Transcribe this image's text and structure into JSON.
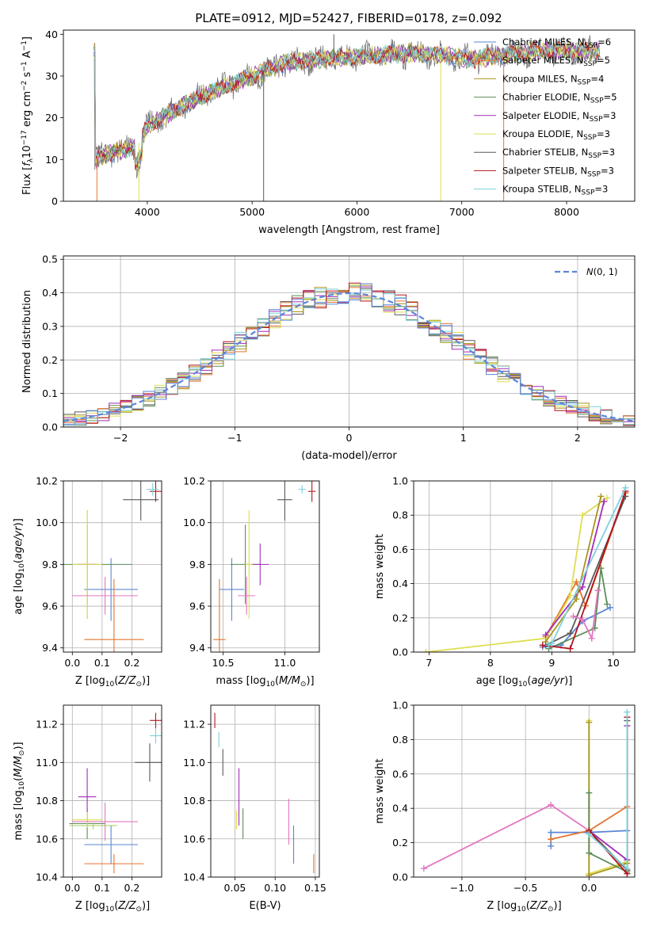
{
  "title": "PLATE=0912, MJD=52427, FIBERID=0178, z=0.092",
  "colors": [
    "#5b86d6",
    "#e6752e",
    "#a8951f",
    "#5e8c5a",
    "#a22db8",
    "#dede52",
    "#595959",
    "#b3151e",
    "#7fd0db",
    "#e377c2",
    "#a9d36a"
  ],
  "legend_labels": [
    "Chabrier MILES, N_SSP=6",
    "Salpeter MILES, N_SSP=5",
    "Kroupa MILES, N_SSP=4",
    "Chabrier ELODIE, N_SSP=5",
    "Salpeter ELODIE, N_SSP=3",
    "Kroupa ELODIE, N_SSP=3",
    "Chabrier STELIB, N_SSP=3",
    "Salpeter STELIB, N_SSP=3",
    "Kroupa STELIB, N_SSP=3"
  ],
  "chart_data": [
    {
      "id": "spectrum",
      "type": "line",
      "xlabel": "wavelength [Angstrom, rest frame]",
      "ylabel": "Flux [f_λ 10^-17 erg cm^-2 s^-1 A^-1]",
      "xlim": [
        3200,
        8650
      ],
      "ylim": [
        0,
        41
      ],
      "xticks": [
        4000,
        5000,
        6000,
        7000,
        8000
      ],
      "yticks": [
        0,
        10,
        20,
        30,
        40
      ],
      "grid": false,
      "legend": "top-right",
      "continuum": [
        [
          3500,
          10
        ],
        [
          3700,
          12
        ],
        [
          3900,
          13
        ],
        [
          4000,
          18
        ],
        [
          4200,
          21
        ],
        [
          4500,
          25
        ],
        [
          4800,
          28
        ],
        [
          5000,
          30
        ],
        [
          5300,
          33
        ],
        [
          5600,
          34
        ],
        [
          5900,
          34.5
        ],
        [
          6200,
          35
        ],
        [
          6500,
          35.5
        ],
        [
          6800,
          35
        ],
        [
          7100,
          34
        ],
        [
          7400,
          35
        ],
        [
          7700,
          36
        ],
        [
          8000,
          36
        ],
        [
          8300,
          36
        ]
      ],
      "spikes": [
        [
          5110,
          0
        ],
        [
          5780,
          40
        ],
        [
          6800,
          0
        ],
        [
          7400,
          0
        ],
        [
          3920,
          0
        ],
        [
          3520,
          0
        ]
      ]
    },
    {
      "id": "residual-histogram",
      "type": "bar",
      "xlabel": "(data-model)/error",
      "ylabel": "Normed distribution",
      "xlim": [
        -2.5,
        2.5
      ],
      "ylim": [
        0,
        0.51
      ],
      "xticks": [
        -2,
        -1,
        0,
        1,
        2
      ],
      "yticks": [
        0.0,
        0.1,
        0.2,
        0.3,
        0.4,
        0.5
      ],
      "grid": true,
      "legend": "top-right",
      "reference": {
        "name": "N(0,1)",
        "mean": 0,
        "sigma": 1
      },
      "bin_width": 0.1,
      "n_series": 9
    },
    {
      "id": "age-vs-metallicity",
      "type": "scatter",
      "xlabel": "Z [log10(Z/Z☉)]",
      "ylabel": "age [log10(age/yr)]",
      "xlim": [
        -0.03,
        0.3
      ],
      "ylim": [
        9.38,
        10.2
      ],
      "xticks": [
        0.0,
        0.1,
        0.2
      ],
      "yticks": [
        9.4,
        9.6,
        9.8,
        10.0,
        10.2
      ],
      "grid": true,
      "points": [
        {
          "series": 0,
          "x": 0.13,
          "y": 9.68,
          "xerr": 0.09,
          "yerr": 0.15
        },
        {
          "series": 1,
          "x": 0.14,
          "y": 9.44,
          "xerr": 0.1,
          "yerr": 0.29
        },
        {
          "series": 3,
          "x": 0.05,
          "y": 9.8,
          "xerr": 0.15,
          "yerr": 0.19
        },
        {
          "series": 4,
          "x": 0.05,
          "y": 9.8,
          "xerr": 0.03,
          "yerr": 0.26
        },
        {
          "series": 5,
          "x": 0.05,
          "y": 9.8,
          "xerr": 0.05,
          "yerr": 0.26
        },
        {
          "series": 6,
          "x": 0.23,
          "y": 10.11,
          "xerr": 0.06,
          "yerr": 0.1
        },
        {
          "series": 7,
          "x": 0.28,
          "y": 10.15,
          "xerr": 0.02,
          "yerr": 0.05
        },
        {
          "series": 8,
          "x": 0.27,
          "y": 10.16,
          "xerr": 0.02,
          "yerr": 0.03
        },
        {
          "series": 9,
          "x": 0.11,
          "y": 9.65,
          "xerr": 0.11,
          "yerr": 0.09
        }
      ]
    },
    {
      "id": "age-vs-mass",
      "type": "scatter",
      "xlabel": "mass [log10(M/M☉)]",
      "ylabel": "",
      "xlim": [
        10.4,
        11.28
      ],
      "ylim": [
        9.38,
        10.2
      ],
      "xticks": [
        10.5,
        11.0
      ],
      "yticks": [
        9.4,
        9.6,
        9.8,
        10.0,
        10.2
      ],
      "grid": true,
      "points": [
        {
          "series": 0,
          "x": 10.57,
          "y": 9.68,
          "xerr": 0.1,
          "yerr": 0.15
        },
        {
          "series": 1,
          "x": 10.47,
          "y": 9.44,
          "xerr": 0.05,
          "yerr": 0.29
        },
        {
          "series": 3,
          "x": 10.68,
          "y": 9.8,
          "xerr": 0.12,
          "yerr": 0.19
        },
        {
          "series": 4,
          "x": 10.8,
          "y": 9.8,
          "xerr": 0.07,
          "yerr": 0.1
        },
        {
          "series": 5,
          "x": 10.71,
          "y": 9.8,
          "xerr": 0.03,
          "yerr": 0.26
        },
        {
          "series": 6,
          "x": 11.0,
          "y": 10.11,
          "xerr": 0.06,
          "yerr": 0.1
        },
        {
          "series": 7,
          "x": 11.22,
          "y": 10.15,
          "xerr": 0.03,
          "yerr": 0.05
        },
        {
          "series": 8,
          "x": 11.14,
          "y": 10.16,
          "xerr": 0.03,
          "yerr": 0.02
        },
        {
          "series": 9,
          "x": 10.69,
          "y": 9.65,
          "xerr": 0.07,
          "yerr": 0.09
        }
      ]
    },
    {
      "id": "mass-weight-vs-age",
      "type": "line",
      "xlabel": "age [log10(age/yr)]",
      "ylabel": "mass weight",
      "xlim": [
        6.75,
        10.35
      ],
      "ylim": [
        0,
        1.0
      ],
      "xticks": [
        7,
        8,
        9,
        10
      ],
      "yticks": [
        0.0,
        0.2,
        0.4,
        0.6,
        0.8,
        1.0
      ],
      "grid": true,
      "series": [
        {
          "series": 0,
          "x": [
            8.85,
            9.15,
            9.5,
            9.95
          ],
          "y": [
            0.03,
            0.04,
            0.18,
            0.26
          ]
        },
        {
          "series": 1,
          "x": [
            8.9,
            9.4,
            9.55,
            10.2
          ],
          "y": [
            0.09,
            0.41,
            0.27,
            0.93
          ]
        },
        {
          "series": 5,
          "x": [
            6.95,
            8.9,
            9.3,
            9.5,
            9.9
          ],
          "y": [
            0.0,
            0.08,
            0.33,
            0.8,
            0.9
          ]
        },
        {
          "series": 4,
          "x": [
            8.9,
            9.5,
            9.85
          ],
          "y": [
            0.1,
            0.38,
            0.88
          ]
        },
        {
          "series": 2,
          "x": [
            8.9,
            9.4,
            9.8
          ],
          "y": [
            0.06,
            0.31,
            0.91
          ]
        },
        {
          "series": 3,
          "x": [
            8.95,
            9.7,
            9.8,
            9.9
          ],
          "y": [
            0.02,
            0.14,
            0.49,
            0.28
          ]
        },
        {
          "series": 6,
          "x": [
            8.9,
            9.3,
            10.2
          ],
          "y": [
            0.04,
            0.11,
            0.91
          ]
        },
        {
          "series": 7,
          "x": [
            8.85,
            9.3,
            10.2
          ],
          "y": [
            0.04,
            0.02,
            0.94
          ]
        },
        {
          "series": 8,
          "x": [
            8.95,
            9.0,
            10.2
          ],
          "y": [
            0.04,
            0.05,
            0.96
          ]
        },
        {
          "series": 9,
          "x": [
            9.35,
            9.5,
            9.65,
            9.75
          ],
          "y": [
            0.21,
            0.19,
            0.08,
            0.36
          ]
        }
      ]
    },
    {
      "id": "mass-vs-metallicity",
      "type": "scatter",
      "xlabel": "Z [log10(Z/Z☉)]",
      "ylabel": "mass [log10(M/M☉)]",
      "xlim": [
        -0.03,
        0.3
      ],
      "ylim": [
        10.4,
        11.3
      ],
      "xticks": [
        0.0,
        0.1,
        0.2
      ],
      "yticks": [
        10.4,
        10.6,
        10.8,
        11.0,
        11.2
      ],
      "grid": true,
      "points": [
        {
          "series": 0,
          "x": 0.13,
          "y": 10.57,
          "xerr": 0.09,
          "yerr": 0.1
        },
        {
          "series": 1,
          "x": 0.14,
          "y": 10.47,
          "xerr": 0.1,
          "yerr": 0.05
        },
        {
          "series": 3,
          "x": 0.05,
          "y": 10.68,
          "xerr": 0.06,
          "yerr": 0.08
        },
        {
          "series": 4,
          "x": 0.05,
          "y": 10.82,
          "xerr": 0.03,
          "yerr": 0.15
        },
        {
          "series": 5,
          "x": 0.05,
          "y": 10.7,
          "xerr": 0.05,
          "yerr": 0.04
        },
        {
          "series": 6,
          "x": 0.26,
          "y": 11.0,
          "xerr": 0.05,
          "yerr": 0.1
        },
        {
          "series": 7,
          "x": 0.28,
          "y": 11.22,
          "xerr": 0.02,
          "yerr": 0.04
        },
        {
          "series": 8,
          "x": 0.28,
          "y": 11.14,
          "xerr": 0.02,
          "yerr": 0.04
        },
        {
          "series": 9,
          "x": 0.11,
          "y": 10.69,
          "xerr": 0.11,
          "yerr": 0.1
        },
        {
          "series": 10,
          "x": 0.07,
          "y": 10.67,
          "xerr": 0.08,
          "yerr": 0.02
        }
      ]
    },
    {
      "id": "mass-vs-extinction",
      "type": "scatter",
      "xlabel": "E(B-V)",
      "ylabel": "",
      "xlim": [
        0.02,
        0.155
      ],
      "ylim": [
        10.4,
        11.3
      ],
      "xticks": [
        0.05,
        0.1,
        0.15
      ],
      "yticks": [
        10.4,
        10.6,
        10.8,
        11.0,
        11.2
      ],
      "grid": true,
      "points": [
        {
          "series": 0,
          "x": 0.123,
          "y": 10.57,
          "yerr": 0.1
        },
        {
          "series": 1,
          "x": 0.148,
          "y": 10.47,
          "yerr": 0.05
        },
        {
          "series": 3,
          "x": 0.06,
          "y": 10.68,
          "yerr": 0.08
        },
        {
          "series": 4,
          "x": 0.055,
          "y": 10.82,
          "yerr": 0.15
        },
        {
          "series": 5,
          "x": 0.052,
          "y": 10.7,
          "yerr": 0.05
        },
        {
          "series": 6,
          "x": 0.035,
          "y": 11.0,
          "yerr": 0.07
        },
        {
          "series": 7,
          "x": 0.025,
          "y": 11.22,
          "yerr": 0.04
        },
        {
          "series": 8,
          "x": 0.03,
          "y": 11.12,
          "yerr": 0.04
        },
        {
          "series": 9,
          "x": 0.117,
          "y": 10.69,
          "yerr": 0.12
        }
      ]
    },
    {
      "id": "mass-weight-vs-metallicity",
      "type": "line",
      "xlabel": "Z [log10(Z/Z☉)]",
      "ylabel": "mass weight",
      "xlim": [
        -1.38,
        0.36
      ],
      "ylim": [
        0,
        1.0
      ],
      "xticks": [
        -1.0,
        -0.5,
        0.0
      ],
      "yticks": [
        0.0,
        0.2,
        0.4,
        0.6,
        0.8,
        1.0
      ],
      "grid": true,
      "series": [
        {
          "series": 9,
          "x": [
            -1.3,
            -0.3,
            0.0,
            0.3
          ],
          "y": [
            0.05,
            0.42,
            0.27,
            0.1
          ]
        },
        {
          "series": 0,
          "x": [
            -0.3,
            -0.3,
            0.0,
            0.3
          ],
          "y": [
            0.18,
            0.26,
            0.26,
            0.27
          ]
        },
        {
          "series": 1,
          "x": [
            -0.3,
            0.0,
            0.3
          ],
          "y": [
            0.22,
            0.27,
            0.41
          ]
        },
        {
          "series": 5,
          "x": [
            0.0,
            0.0,
            0.3
          ],
          "y": [
            0.91,
            0.02,
            0.09
          ]
        },
        {
          "series": 2,
          "x": [
            0.0,
            0.0,
            0.3
          ],
          "y": [
            0.9,
            0.01,
            0.08
          ]
        },
        {
          "series": 3,
          "x": [
            0.0,
            0.0,
            0.3
          ],
          "y": [
            0.49,
            0.14,
            0.03
          ]
        },
        {
          "series": 4,
          "x": [
            0.0,
            0.3,
            0.3
          ],
          "y": [
            0.27,
            0.1,
            0.88
          ]
        },
        {
          "series": 6,
          "x": [
            0.0,
            0.3,
            0.3
          ],
          "y": [
            0.27,
            0.04,
            0.91
          ]
        },
        {
          "series": 7,
          "x": [
            0.0,
            0.3,
            0.3
          ],
          "y": [
            0.27,
            0.02,
            0.93
          ]
        },
        {
          "series": 8,
          "x": [
            0.0,
            0.3,
            0.3
          ],
          "y": [
            0.25,
            0.05,
            0.96
          ]
        }
      ]
    }
  ]
}
